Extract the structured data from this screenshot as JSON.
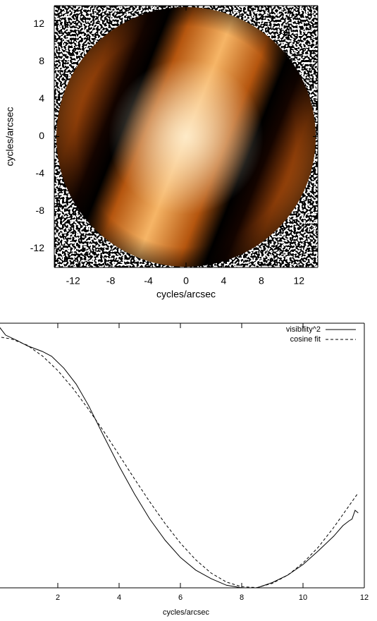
{
  "chart_data": [
    {
      "type": "image",
      "xlabel": "cycles/arcsec",
      "ylabel": "cycles/arcsec",
      "xlim": [
        -14,
        14
      ],
      "ylim": [
        -14,
        14
      ],
      "xticks": [
        -12,
        -8,
        -4,
        0,
        4,
        8,
        12
      ],
      "yticks": [
        -12,
        -8,
        -4,
        0,
        4,
        8,
        12
      ]
    },
    {
      "type": "line",
      "xlabel": "cycles/arcsec",
      "xlim": [
        0,
        12
      ],
      "ylim": [
        0,
        1
      ],
      "xticks": [
        2,
        4,
        6,
        8,
        10,
        12
      ],
      "legend": "upper right",
      "series": [
        {
          "name": "visibility^2",
          "color": "#000000",
          "dash": "solid",
          "x": [
            0,
            0.3,
            0.7,
            1.0,
            1.5,
            1.8,
            2.2,
            2.6,
            3.0,
            3.5,
            4.0,
            4.5,
            5.0,
            5.5,
            6.0,
            6.5,
            7.0,
            7.5,
            8.0,
            8.5,
            9.0,
            9.5,
            10.0,
            10.5,
            11.0,
            11.3,
            11.5,
            11.6,
            11.7,
            11.8
          ],
          "values": [
            1.0,
            0.955,
            0.933,
            0.915,
            0.893,
            0.875,
            0.83,
            0.77,
            0.69,
            0.573,
            0.46,
            0.355,
            0.26,
            0.18,
            0.115,
            0.067,
            0.035,
            0.01,
            0.0,
            0.0,
            0.02,
            0.048,
            0.088,
            0.14,
            0.195,
            0.235,
            0.253,
            0.26,
            0.293,
            0.283
          ]
        },
        {
          "name": "cosine fit",
          "color": "#000000",
          "dash": "dashed",
          "x": [
            0,
            0.5,
            1,
            1.5,
            2,
            2.5,
            3,
            3.5,
            4,
            4.5,
            5,
            5.5,
            6,
            6.5,
            7,
            7.5,
            8,
            8.5,
            9,
            9.5,
            10,
            10.5,
            11,
            11.5,
            11.8
          ],
          "values": [
            0.95,
            0.94,
            0.917,
            0.876,
            0.821,
            0.753,
            0.675,
            0.591,
            0.502,
            0.412,
            0.325,
            0.243,
            0.169,
            0.106,
            0.056,
            0.022,
            0.004,
            0.001,
            0.017,
            0.048,
            0.094,
            0.154,
            0.228,
            0.31,
            0.359
          ]
        }
      ]
    }
  ]
}
